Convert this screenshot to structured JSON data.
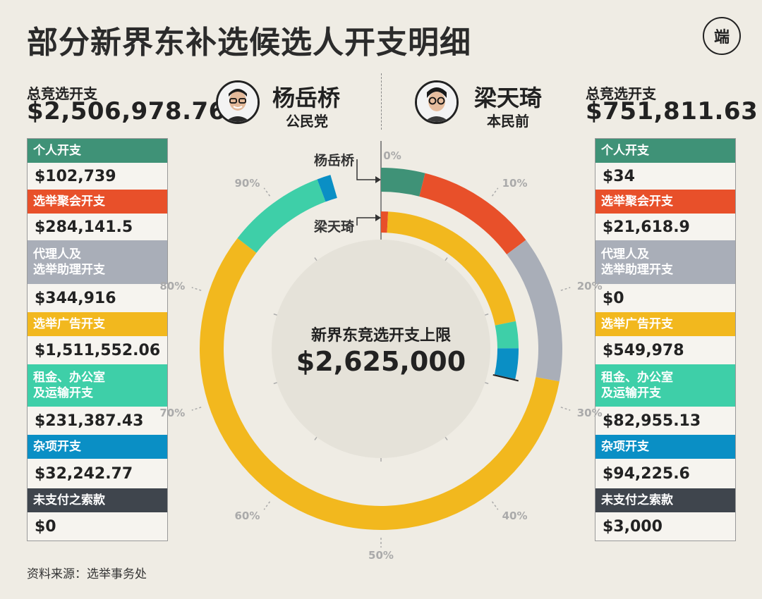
{
  "title": "部分新界东补选候选人开支明细",
  "logo_text": "端",
  "source": "资料来源：选举事务处",
  "center": {
    "label": "新界东竞选开支上限",
    "value": "$2,625,000"
  },
  "colors": {
    "personal": "#3f9277",
    "rally": "#e8502a",
    "agent": "#a9aeb8",
    "ads": "#f2b81e",
    "rent": "#3ecfa8",
    "misc": "#0a8fc5",
    "unpaid": "#3f454d"
  },
  "categories": [
    {
      "key": "personal",
      "label": "个人开支"
    },
    {
      "key": "rally",
      "label": "选举聚会开支"
    },
    {
      "key": "agent",
      "label": "代理人及\n选举助理开支"
    },
    {
      "key": "ads",
      "label": "选举广告开支"
    },
    {
      "key": "rent",
      "label": "租金、办公室\n及运输开支"
    },
    {
      "key": "misc",
      "label": "杂项开支"
    },
    {
      "key": "unpaid",
      "label": "未支付之索款"
    }
  ],
  "candidates": [
    {
      "name": "杨岳桥",
      "party": "公民党",
      "total_label": "总竞选开支",
      "total_value": "$2,506,978.76",
      "ring_label": "杨岳桥",
      "values_text": [
        "$102,739",
        "$284,141.5",
        "$344,916",
        "$1,511,552.06",
        "$231,387.43",
        "$32,242.77",
        "$0"
      ]
    },
    {
      "name": "梁天琦",
      "party": "本民前",
      "total_label": "总竞选开支",
      "total_value": "$751,811.63",
      "ring_label": "梁天琦",
      "values_text": [
        "$34",
        "$21,618.9",
        "$0",
        "$549,978",
        "$82,955.13",
        "$94,225.6",
        "$3,000"
      ]
    }
  ],
  "chart_data": {
    "type": "donut",
    "title": "部分新界东补选候选人开支明细",
    "limit": 2625000,
    "tick_labels": [
      "0%",
      "10%",
      "20%",
      "30%",
      "40%",
      "50%",
      "60%",
      "70%",
      "80%",
      "90%"
    ],
    "series": [
      {
        "name": "杨岳桥",
        "ring": "outer",
        "start": "personal",
        "values": [
          102739,
          284141.5,
          344916,
          1511552.06,
          231387.43,
          32242.77,
          0
        ]
      },
      {
        "name": "梁天琦",
        "ring": "inner",
        "start": "rally",
        "values": [
          34,
          21618.9,
          0,
          549978,
          82955.13,
          94225.6,
          3000
        ]
      }
    ]
  }
}
